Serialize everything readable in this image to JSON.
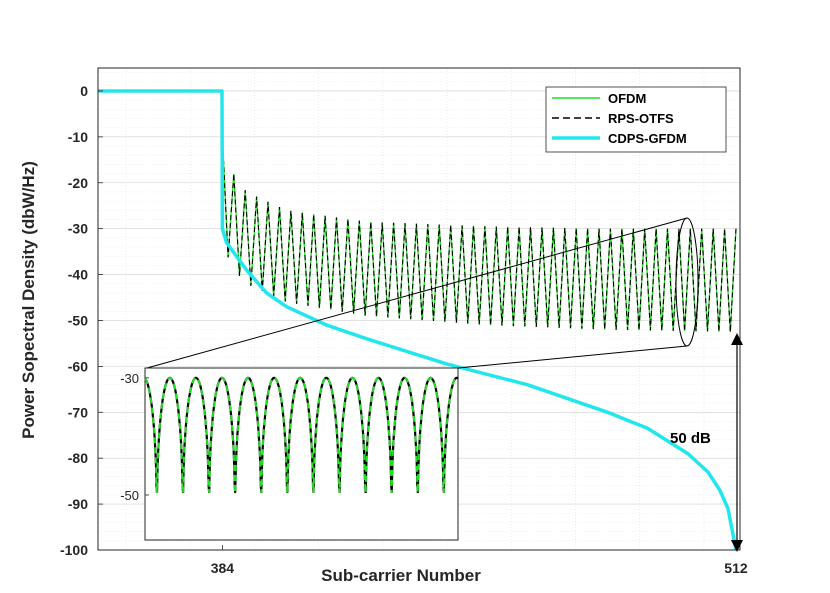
{
  "chart_data": {
    "type": "line",
    "xlabel": "Sub-carrier Number",
    "ylabel": "Power Sopectral Density (dbW/Hz)",
    "xlim": [
      353,
      513
    ],
    "ylim": [
      -100,
      5
    ],
    "xticks": [
      384,
      512
    ],
    "xtick_labels": [
      "384",
      "512"
    ],
    "yticks": [
      0,
      -10,
      -20,
      -30,
      -40,
      -50,
      -60,
      -70,
      -80,
      -90,
      -100
    ],
    "ytick_labels": [
      "0",
      "-10",
      "-20",
      "-30",
      "-40",
      "-50",
      "-60",
      "-70",
      "-80",
      "-90",
      "-100"
    ],
    "grid": true,
    "minor_grid": true,
    "legend_position": "top-right",
    "colors": {
      "OFDM": "#22dd22",
      "RPS-OTFS": "#000000",
      "CDPS-GFDM": "#22e6ee"
    },
    "series": [
      {
        "name": "OFDM",
        "style": "solid",
        "x": [
          353,
          383.9,
          384,
          386,
          390,
          400,
          420,
          450,
          480,
          512
        ],
        "upper": [
          0,
          0,
          -10,
          -17,
          -22,
          -26,
          -28.5,
          -29.5,
          -30,
          -30
        ],
        "lower": [
          0,
          0,
          -32,
          -38,
          -42,
          -46,
          -49,
          -51,
          -52,
          -52.5
        ]
      },
      {
        "name": "RPS-OTFS",
        "style": "dashed",
        "x": [
          353,
          383.9,
          384,
          386,
          390,
          400,
          420,
          450,
          480,
          512
        ],
        "upper": [
          0,
          0,
          -10,
          -17,
          -22,
          -26,
          -28.5,
          -29.5,
          -30,
          -30
        ],
        "lower": [
          0,
          0,
          -32,
          -38,
          -42,
          -46,
          -49,
          -51,
          -52,
          -52.5
        ]
      },
      {
        "name": "CDPS-GFDM",
        "style": "solid",
        "x": [
          353,
          383.9,
          384,
          385,
          390,
          395,
          400,
          410,
          420,
          440,
          460,
          480,
          490,
          500,
          505,
          508,
          510,
          512
        ],
        "y": [
          0,
          0,
          -30,
          -33,
          -39,
          -44,
          -47,
          -51,
          -54,
          -59.5,
          -64,
          -70,
          -73.5,
          -79,
          -83,
          -87,
          -91,
          -100
        ]
      }
    ],
    "annotations": [
      {
        "text": "50 dB",
        "from_y": -52,
        "to_y": -100,
        "x": 512
      }
    ],
    "inset": {
      "yticks": [
        -30,
        -50
      ],
      "ytick_labels": [
        "-30",
        "-50"
      ],
      "cycles": 12,
      "ymax": -29,
      "ymin": -57
    }
  }
}
